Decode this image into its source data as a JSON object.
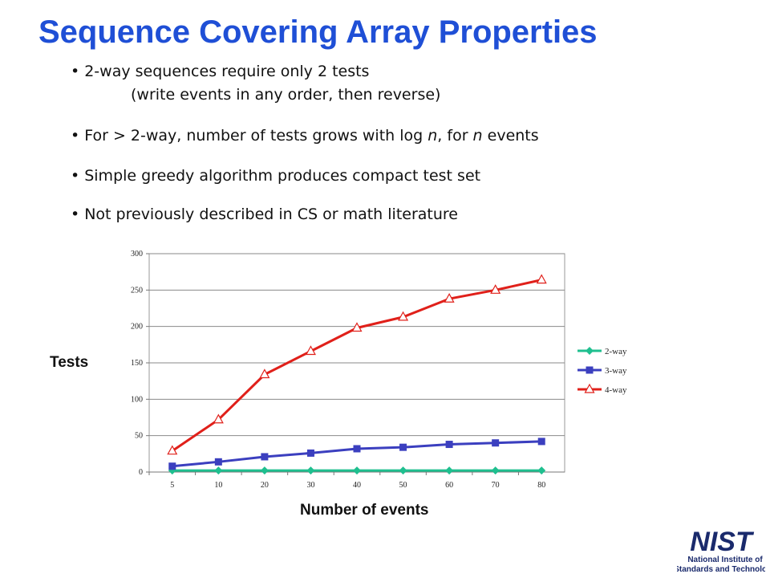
{
  "slide": {
    "title": "Sequence Covering Array Properties",
    "bullets": [
      {
        "line1": "2-way sequences require only 2 tests",
        "line2": "(write events in any order, then  reverse)"
      },
      {
        "prefix": "For > 2-way, number of tests grows with log ",
        "n1": "n",
        "mid": ", for ",
        "n2": "n",
        "suffix": " events"
      },
      {
        "text": "Simple greedy algorithm produces compact test set"
      },
      {
        "text": "Not previously described in CS or math literature"
      }
    ],
    "logo": {
      "mark": "NIST",
      "line1": "National Institute of",
      "line2": "Standards and Technology"
    }
  },
  "chart_data": {
    "type": "line",
    "categories": [
      "5",
      "10",
      "20",
      "30",
      "40",
      "50",
      "60",
      "70",
      "80"
    ],
    "xlabel": "Number of events",
    "ylabel": "Tests",
    "ylim": [
      0,
      300
    ],
    "yticks": [
      0,
      50,
      100,
      150,
      200,
      250,
      300
    ],
    "grid": true,
    "legend_position": "right",
    "series": [
      {
        "name": "2-way",
        "color": "#1fbf8f",
        "marker": "diamond",
        "values": [
          2,
          2,
          2,
          2,
          2,
          2,
          2,
          2,
          2
        ]
      },
      {
        "name": "3-way",
        "color": "#3b3fbf",
        "marker": "square",
        "values": [
          8,
          14,
          21,
          26,
          32,
          34,
          38,
          40,
          42
        ]
      },
      {
        "name": "4-way",
        "color": "#e0201a",
        "marker": "triangle",
        "values": [
          29,
          72,
          134,
          166,
          198,
          213,
          238,
          250,
          264
        ]
      }
    ]
  }
}
